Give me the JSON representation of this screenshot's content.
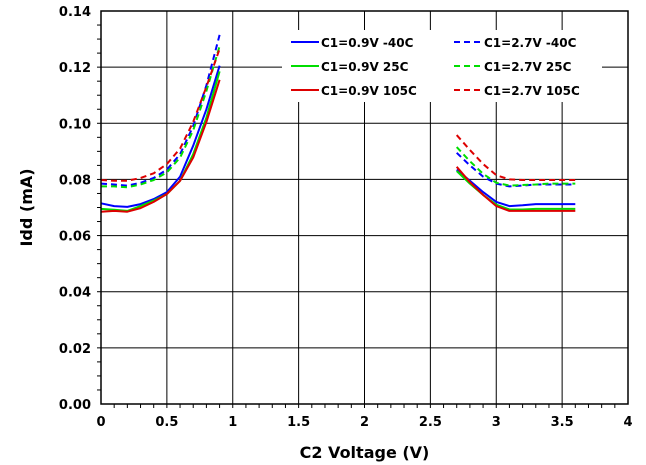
{
  "chart_data": {
    "type": "line",
    "xlabel": "C2 Voltage (V)",
    "ylabel": "Idd (mA)",
    "xlim": [
      0,
      4
    ],
    "ylim": [
      0,
      0.14
    ],
    "xticks": [
      "0",
      "0.5",
      "1",
      "1.5",
      "2",
      "2.5",
      "3",
      "3.5",
      "4"
    ],
    "yticks": [
      "0.00",
      "0.02",
      "0.04",
      "0.06",
      "0.08",
      "0.10",
      "0.12",
      "0.14"
    ],
    "grid": true,
    "legend_position": "top-right",
    "series": [
      {
        "name": "C1=0.9V -40C",
        "color": "#0000ff",
        "dash": "solid",
        "segments": [
          [
            [
              0,
              0.0715
            ],
            [
              0.1,
              0.0705
            ],
            [
              0.2,
              0.0702
            ],
            [
              0.3,
              0.0712
            ],
            [
              0.4,
              0.073
            ],
            [
              0.5,
              0.0755
            ],
            [
              0.6,
              0.081
            ],
            [
              0.7,
              0.092
            ],
            [
              0.8,
              0.105
            ],
            [
              0.9,
              0.1205
            ]
          ],
          [
            [
              2.7,
              0.0835
            ],
            [
              2.8,
              0.0795
            ],
            [
              2.9,
              0.0755
            ],
            [
              3.0,
              0.072
            ],
            [
              3.1,
              0.0705
            ],
            [
              3.2,
              0.0708
            ],
            [
              3.3,
              0.0712
            ],
            [
              3.4,
              0.0712
            ],
            [
              3.5,
              0.0712
            ],
            [
              3.6,
              0.0712
            ]
          ]
        ]
      },
      {
        "name": "C1=0.9V 25C",
        "color": "#00dd00",
        "dash": "solid",
        "segments": [
          [
            [
              0,
              0.0695
            ],
            [
              0.1,
              0.0692
            ],
            [
              0.2,
              0.0688
            ],
            [
              0.3,
              0.0705
            ],
            [
              0.4,
              0.0725
            ],
            [
              0.5,
              0.0748
            ],
            [
              0.6,
              0.0795
            ],
            [
              0.7,
              0.089
            ],
            [
              0.8,
              0.102
            ],
            [
              0.9,
              0.1185
            ]
          ],
          [
            [
              2.7,
              0.083
            ],
            [
              2.8,
              0.0785
            ],
            [
              2.9,
              0.0745
            ],
            [
              3.0,
              0.071
            ],
            [
              3.1,
              0.0693
            ],
            [
              3.2,
              0.0693
            ],
            [
              3.3,
              0.0695
            ],
            [
              3.4,
              0.0695
            ],
            [
              3.5,
              0.0695
            ],
            [
              3.6,
              0.0695
            ]
          ]
        ]
      },
      {
        "name": "C1=0.9V 105C",
        "color": "#dd0000",
        "dash": "solid",
        "segments": [
          [
            [
              0,
              0.0685
            ],
            [
              0.1,
              0.0688
            ],
            [
              0.2,
              0.0685
            ],
            [
              0.3,
              0.0698
            ],
            [
              0.4,
              0.072
            ],
            [
              0.5,
              0.0748
            ],
            [
              0.6,
              0.0795
            ],
            [
              0.7,
              0.0878
            ],
            [
              0.8,
              0.1005
            ],
            [
              0.9,
              0.1155
            ]
          ],
          [
            [
              2.7,
              0.0845
            ],
            [
              2.8,
              0.079
            ],
            [
              2.9,
              0.0745
            ],
            [
              3.0,
              0.0705
            ],
            [
              3.1,
              0.0688
            ],
            [
              3.2,
              0.0688
            ],
            [
              3.3,
              0.0688
            ],
            [
              3.4,
              0.0688
            ],
            [
              3.5,
              0.0688
            ],
            [
              3.6,
              0.0688
            ]
          ]
        ]
      },
      {
        "name": "C1=2.7V -40C",
        "color": "#0000ff",
        "dash": "dashed",
        "segments": [
          [
            [
              0,
              0.0785
            ],
            [
              0.1,
              0.0782
            ],
            [
              0.2,
              0.0778
            ],
            [
              0.3,
              0.0788
            ],
            [
              0.4,
              0.0805
            ],
            [
              0.5,
              0.0835
            ],
            [
              0.6,
              0.089
            ],
            [
              0.7,
              0.099
            ],
            [
              0.8,
              0.1135
            ],
            [
              0.9,
              0.1315
            ]
          ],
          [
            [
              2.7,
              0.0895
            ],
            [
              2.8,
              0.085
            ],
            [
              2.9,
              0.081
            ],
            [
              3.0,
              0.0785
            ],
            [
              3.1,
              0.0775
            ],
            [
              3.2,
              0.0778
            ],
            [
              3.3,
              0.0782
            ],
            [
              3.4,
              0.0782
            ],
            [
              3.5,
              0.0782
            ],
            [
              3.6,
              0.0782
            ]
          ]
        ]
      },
      {
        "name": "C1=2.7V 25C",
        "color": "#00dd00",
        "dash": "dashed",
        "segments": [
          [
            [
              0,
              0.0775
            ],
            [
              0.1,
              0.0775
            ],
            [
              0.2,
              0.0772
            ],
            [
              0.3,
              0.0782
            ],
            [
              0.4,
              0.0798
            ],
            [
              0.5,
              0.0825
            ],
            [
              0.6,
              0.0878
            ],
            [
              0.7,
              0.0975
            ],
            [
              0.8,
              0.1115
            ],
            [
              0.9,
              0.1275
            ]
          ],
          [
            [
              2.7,
              0.0915
            ],
            [
              2.8,
              0.0865
            ],
            [
              2.9,
              0.082
            ],
            [
              3.0,
              0.0788
            ],
            [
              3.1,
              0.0778
            ],
            [
              3.2,
              0.078
            ],
            [
              3.3,
              0.0782
            ],
            [
              3.4,
              0.0785
            ],
            [
              3.5,
              0.0785
            ],
            [
              3.6,
              0.0785
            ]
          ]
        ]
      },
      {
        "name": "C1=2.7V 105C",
        "color": "#dd0000",
        "dash": "dashed",
        "segments": [
          [
            [
              0,
              0.0798
            ],
            [
              0.1,
              0.0795
            ],
            [
              0.2,
              0.0795
            ],
            [
              0.3,
              0.0805
            ],
            [
              0.4,
              0.0822
            ],
            [
              0.5,
              0.0855
            ],
            [
              0.6,
              0.091
            ],
            [
              0.7,
              0.1005
            ],
            [
              0.8,
              0.113
            ],
            [
              0.9,
              0.1265
            ]
          ],
          [
            [
              2.7,
              0.0958
            ],
            [
              2.8,
              0.0905
            ],
            [
              2.9,
              0.0855
            ],
            [
              3.0,
              0.0815
            ],
            [
              3.1,
              0.08
            ],
            [
              3.2,
              0.0798
            ],
            [
              3.3,
              0.0798
            ],
            [
              3.4,
              0.0798
            ],
            [
              3.5,
              0.0798
            ],
            [
              3.6,
              0.0798
            ]
          ]
        ]
      }
    ]
  }
}
